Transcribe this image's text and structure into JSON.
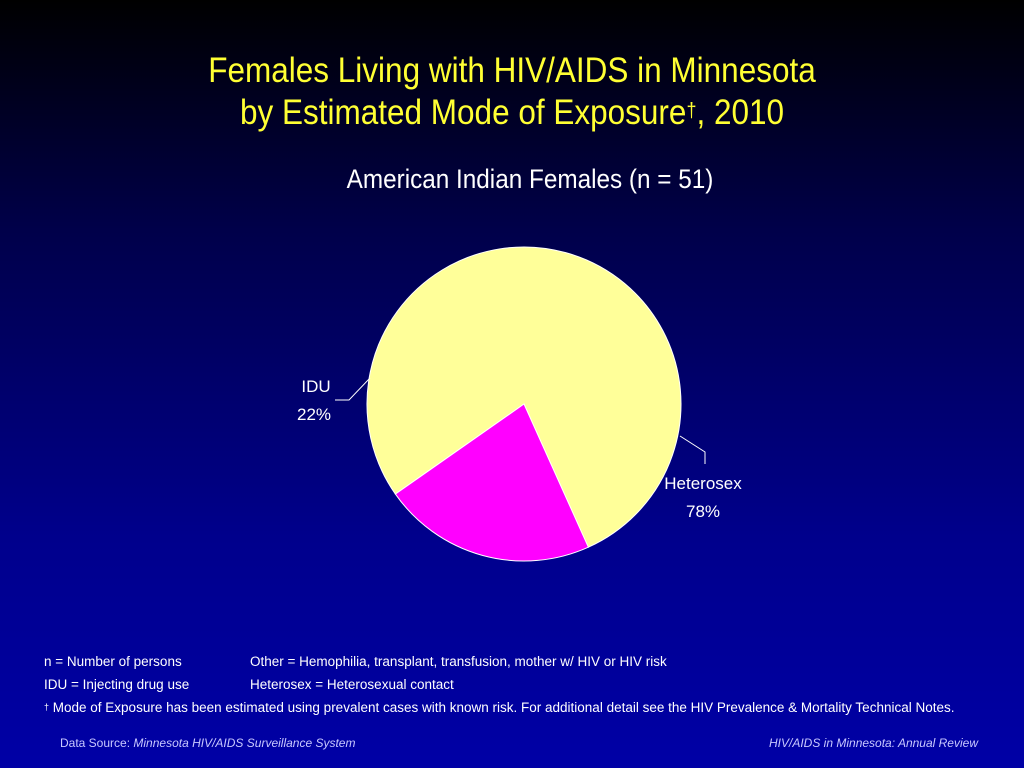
{
  "title_line1": "Females Living with HIV/AIDS in Minnesota",
  "title_line2": "by Estimated Mode of Exposure",
  "title_dagger": "†",
  "title_year": ", 2010",
  "chart_data": {
    "type": "pie",
    "subtitle": "American Indian Females (n = 51)",
    "slices": [
      {
        "name": "Heterosex",
        "value": 78,
        "label": "78%",
        "color": "#ffff99"
      },
      {
        "name": "IDU",
        "value": 22,
        "label": "22%",
        "color": "#ff00ff"
      }
    ]
  },
  "notes": {
    "n_def": "n = Number of persons",
    "other_def": "Other = Hemophilia, transplant, transfusion, mother w/ HIV or HIV risk",
    "idu_def": "IDU = Injecting drug use",
    "hetero_def": "Heterosex = Heterosexual contact",
    "dagger": "†",
    "mode_note": " Mode of Exposure has been estimated using prevalent cases with known risk. For additional detail see the HIV Prevalence & Mortality Technical Notes."
  },
  "footer": {
    "source_label": "Data Source:",
    "source_name": "Minnesota HIV/AIDS Surveillance System",
    "report": "HIV/AIDS in Minnesota: Annual Review"
  }
}
